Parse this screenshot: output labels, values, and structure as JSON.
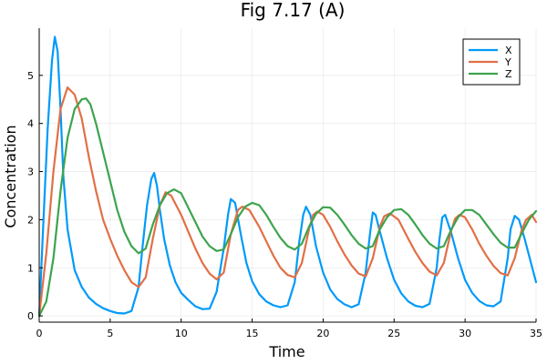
{
  "chart_data": {
    "type": "line",
    "title": "Fig 7.17 (A)",
    "xlabel": "Time",
    "ylabel": "Concentration",
    "xlim": [
      0,
      35
    ],
    "ylim": [
      -0.13,
      5.98
    ],
    "xticks": [
      0,
      5,
      10,
      15,
      20,
      25,
      30,
      35
    ],
    "yticks": [
      0,
      1,
      2,
      3,
      4,
      5
    ],
    "grid": true,
    "legend_position": "top-right",
    "series": [
      {
        "name": "X",
        "color": "#009AFA",
        "x": [
          0,
          0.3,
          0.6,
          0.9,
          1.1,
          1.3,
          1.5,
          1.7,
          2.0,
          2.5,
          3,
          3.5,
          4,
          4.5,
          5,
          5.5,
          6,
          6.5,
          7,
          7.3,
          7.6,
          7.9,
          8.1,
          8.3,
          8.5,
          8.8,
          9.2,
          9.6,
          10,
          10.5,
          11,
          11.5,
          12,
          12.5,
          13,
          13.3,
          13.5,
          13.8,
          14.2,
          14.6,
          15,
          15.5,
          16,
          16.5,
          17,
          17.5,
          18,
          18.3,
          18.6,
          18.8,
          19.1,
          19.5,
          20,
          20.5,
          21,
          21.5,
          22,
          22.5,
          23,
          23.3,
          23.5,
          23.7,
          24,
          24.5,
          25,
          25.5,
          26,
          26.5,
          27,
          27.5,
          28,
          28.2,
          28.4,
          28.6,
          29,
          29.5,
          30,
          30.5,
          31,
          31.5,
          32,
          32.5,
          33,
          33.2,
          33.5,
          33.8,
          34.2,
          35
        ],
        "y": [
          0,
          2.0,
          3.9,
          5.3,
          5.8,
          5.5,
          4.3,
          2.9,
          1.8,
          0.95,
          0.6,
          0.38,
          0.25,
          0.16,
          0.1,
          0.06,
          0.05,
          0.1,
          0.6,
          1.5,
          2.3,
          2.85,
          2.97,
          2.7,
          2.2,
          1.6,
          1.05,
          0.7,
          0.48,
          0.33,
          0.2,
          0.14,
          0.15,
          0.5,
          1.4,
          2.1,
          2.43,
          2.35,
          1.7,
          1.1,
          0.72,
          0.45,
          0.3,
          0.22,
          0.18,
          0.22,
          0.7,
          1.5,
          2.1,
          2.27,
          2.1,
          1.45,
          0.9,
          0.55,
          0.35,
          0.24,
          0.18,
          0.24,
          0.9,
          1.7,
          2.15,
          2.1,
          1.75,
          1.2,
          0.75,
          0.47,
          0.3,
          0.21,
          0.18,
          0.25,
          1.0,
          1.6,
          2.05,
          2.1,
          1.75,
          1.2,
          0.75,
          0.48,
          0.31,
          0.22,
          0.2,
          0.3,
          1.2,
          1.8,
          2.08,
          2.0,
          1.6,
          0.7
        ]
      },
      {
        "name": "Y",
        "color": "#E26F46",
        "x": [
          0,
          0.5,
          1,
          1.5,
          2,
          2.5,
          3,
          3.5,
          4,
          4.5,
          5,
          5.5,
          6,
          6.5,
          7,
          7.5,
          8,
          8.5,
          8.9,
          9.3,
          10,
          10.5,
          11,
          11.5,
          12,
          12.5,
          13,
          13.5,
          14,
          14.3,
          14.8,
          15.5,
          16,
          16.5,
          17,
          17.5,
          18,
          18.5,
          19,
          19.3,
          19.6,
          20,
          20.5,
          21,
          21.5,
          22,
          22.5,
          23,
          23.5,
          24,
          24.3,
          24.7,
          25.3,
          26,
          26.5,
          27,
          27.5,
          28,
          28.5,
          29,
          29.3,
          29.6,
          30,
          30.5,
          31,
          31.5,
          32,
          32.5,
          33,
          33.5,
          34,
          34.3,
          34.7,
          35
        ],
        "y": [
          0,
          1.3,
          3.0,
          4.3,
          4.75,
          4.6,
          4.1,
          3.3,
          2.6,
          2.0,
          1.6,
          1.25,
          0.95,
          0.7,
          0.6,
          0.8,
          1.6,
          2.3,
          2.57,
          2.5,
          2.1,
          1.75,
          1.4,
          1.1,
          0.88,
          0.76,
          0.9,
          1.7,
          2.2,
          2.27,
          2.2,
          1.85,
          1.55,
          1.25,
          1.0,
          0.85,
          0.8,
          1.1,
          1.8,
          2.1,
          2.17,
          2.1,
          1.85,
          1.55,
          1.28,
          1.05,
          0.88,
          0.82,
          1.2,
          1.85,
          2.07,
          2.13,
          2.0,
          1.6,
          1.33,
          1.1,
          0.92,
          0.84,
          1.1,
          1.75,
          2.02,
          2.1,
          2.05,
          1.8,
          1.5,
          1.25,
          1.04,
          0.89,
          0.84,
          1.2,
          1.8,
          2.0,
          2.1,
          1.95
        ]
      },
      {
        "name": "Z",
        "color": "#3DA44D",
        "x": [
          0,
          0.5,
          1,
          1.5,
          2,
          2.5,
          3,
          3.3,
          3.6,
          4,
          4.5,
          5,
          5.5,
          6,
          6.5,
          7,
          7.5,
          8,
          8.5,
          9,
          9.5,
          10,
          10.5,
          11,
          11.5,
          12,
          12.5,
          13,
          13.5,
          14,
          14.5,
          15,
          15.5,
          16,
          16.5,
          17,
          17.5,
          18,
          18.5,
          19,
          19.5,
          20,
          20.5,
          21,
          21.5,
          22,
          22.5,
          23,
          23.5,
          24,
          24.5,
          25,
          25.5,
          26,
          26.5,
          27,
          27.5,
          28,
          28.5,
          29,
          29.5,
          30,
          30.5,
          31,
          31.5,
          32,
          32.5,
          33,
          33.5,
          34,
          34.5,
          35
        ],
        "y": [
          0,
          0.3,
          1.2,
          2.6,
          3.7,
          4.3,
          4.5,
          4.52,
          4.4,
          4.0,
          3.4,
          2.8,
          2.2,
          1.75,
          1.45,
          1.3,
          1.4,
          1.9,
          2.3,
          2.55,
          2.63,
          2.55,
          2.25,
          1.95,
          1.65,
          1.45,
          1.35,
          1.38,
          1.7,
          2.05,
          2.27,
          2.35,
          2.3,
          2.1,
          1.85,
          1.62,
          1.45,
          1.38,
          1.5,
          1.85,
          2.12,
          2.26,
          2.25,
          2.1,
          1.9,
          1.68,
          1.5,
          1.4,
          1.45,
          1.8,
          2.05,
          2.2,
          2.22,
          2.1,
          1.9,
          1.68,
          1.5,
          1.4,
          1.45,
          1.78,
          2.05,
          2.2,
          2.2,
          2.1,
          1.9,
          1.7,
          1.52,
          1.42,
          1.42,
          1.72,
          2.0,
          2.18
        ]
      }
    ]
  }
}
